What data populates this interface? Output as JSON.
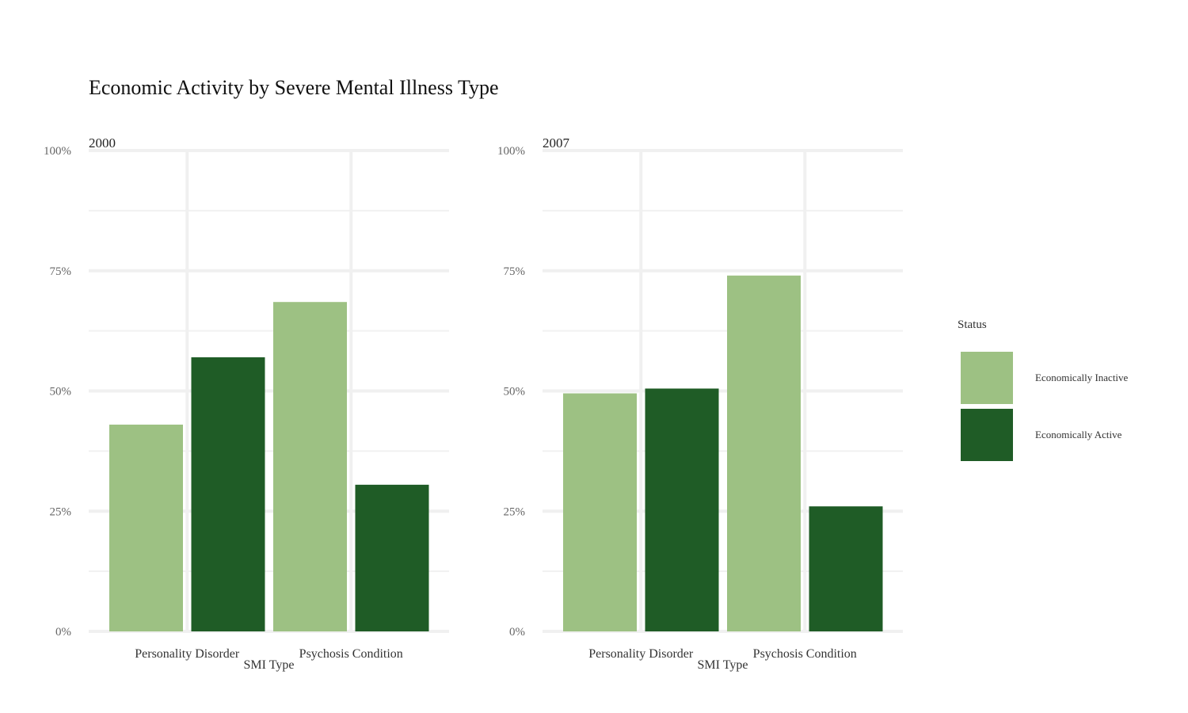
{
  "chart_data": {
    "type": "bar",
    "title": "Economic Activity by Severe Mental Illness Type",
    "xlabel": "SMI Type",
    "ylabel": "",
    "ylim": [
      0,
      1
    ],
    "yticks": [
      "0%",
      "25%",
      "50%",
      "75%",
      "100%"
    ],
    "categories": [
      "Personality Disorder",
      "Psychosis Condition"
    ],
    "legend": {
      "title": "Status",
      "position": "right",
      "entries": [
        {
          "name": "Economically Inactive",
          "color": "#9dc183"
        },
        {
          "name": "Economically Active",
          "color": "#1f5c26"
        }
      ]
    },
    "panels": [
      {
        "label": "2000",
        "series": [
          {
            "name": "Economically Inactive",
            "values": [
              0.43,
              0.685
            ]
          },
          {
            "name": "Economically Active",
            "values": [
              0.57,
              0.305
            ]
          }
        ]
      },
      {
        "label": "2007",
        "series": [
          {
            "name": "Economically Inactive",
            "values": [
              0.495,
              0.74
            ]
          },
          {
            "name": "Economically Active",
            "values": [
              0.505,
              0.26
            ]
          }
        ]
      }
    ]
  }
}
